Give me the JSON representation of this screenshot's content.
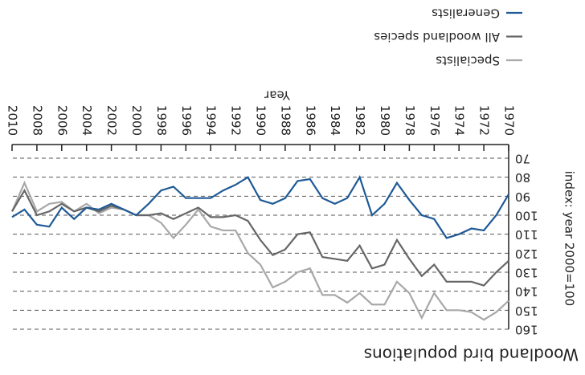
{
  "chart_data": {
    "type": "line",
    "title": "Woodland bird populations",
    "xlabel": "Year",
    "ylabel": "index: year 2000=100",
    "x": [
      1970,
      1971,
      1972,
      1973,
      1974,
      1975,
      1976,
      1977,
      1978,
      1979,
      1980,
      1981,
      1982,
      1983,
      1984,
      1985,
      1986,
      1987,
      1988,
      1989,
      1990,
      1991,
      1992,
      1993,
      1994,
      1995,
      1996,
      1997,
      1998,
      1999,
      2000,
      2001,
      2002,
      2003,
      2004,
      2005,
      2006,
      2007,
      2008,
      2009,
      2010
    ],
    "series": [
      {
        "name": "Specialists",
        "color": "#a8a8a8",
        "values": [
          145,
          151,
          155,
          151,
          150,
          150,
          141,
          154,
          141,
          135,
          147,
          147,
          141,
          146,
          142,
          142,
          128,
          130,
          135,
          138,
          126,
          120,
          108,
          108,
          106,
          97,
          105,
          112,
          104,
          100,
          100,
          97,
          96,
          99,
          94,
          98,
          93,
          94,
          98,
          83,
          98
        ]
      },
      {
        "name": "All woodland species",
        "color": "#666666",
        "values": [
          124,
          130,
          137,
          135,
          135,
          135,
          126,
          132,
          123,
          113,
          126,
          128,
          116,
          124,
          123,
          122,
          109,
          110,
          118,
          121,
          113,
          103,
          100,
          101,
          101,
          96,
          99,
          102,
          99,
          100,
          100,
          97,
          95,
          98,
          96,
          98,
          94,
          98,
          100,
          87,
          98
        ]
      },
      {
        "name": "Generalists",
        "color": "#1f5a96",
        "values": [
          89,
          100,
          108,
          107,
          110,
          112,
          102,
          100,
          92,
          83,
          94,
          100,
          80,
          91,
          94,
          91,
          81,
          82,
          91,
          94,
          92,
          80,
          84,
          87,
          91,
          91,
          91,
          85,
          87,
          94,
          100,
          97,
          94,
          97,
          96,
          102,
          96,
          106,
          105,
          97,
          101
        ]
      }
    ],
    "xlim": [
      1970,
      2010
    ],
    "xticks": [
      1970,
      1972,
      1974,
      1976,
      1978,
      1980,
      1982,
      1984,
      1986,
      1988,
      1990,
      1992,
      1994,
      1996,
      1998,
      2000,
      2002,
      2004,
      2006,
      2008,
      2010
    ],
    "ylim": [
      70,
      160
    ],
    "yticks": [
      70,
      80,
      90,
      100,
      110,
      120,
      130,
      140,
      150,
      160
    ],
    "grid": true
  }
}
